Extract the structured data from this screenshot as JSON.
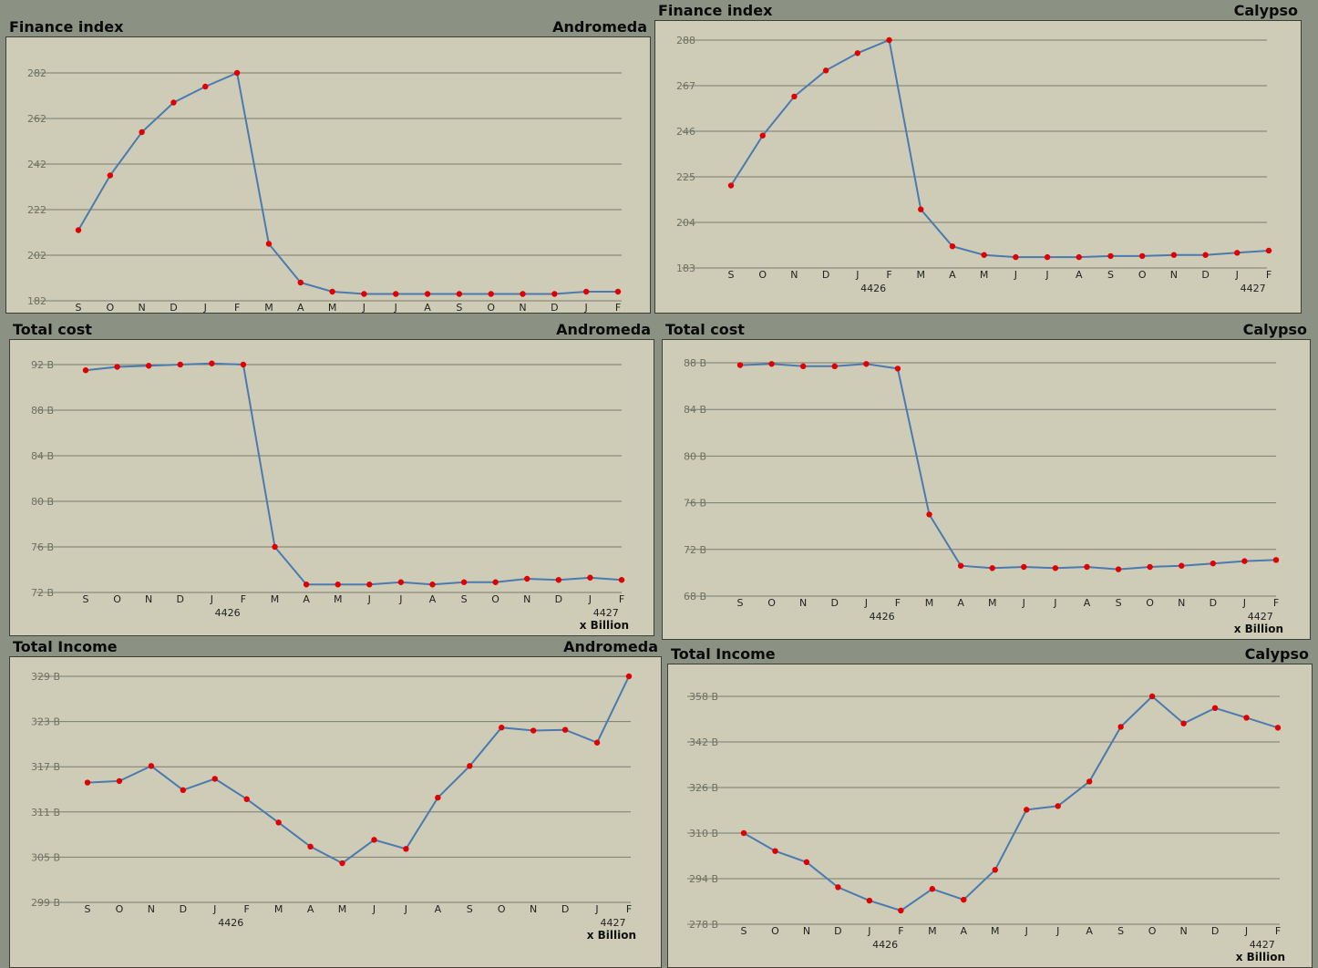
{
  "colors": {
    "background": "#ceccb6",
    "frame": "#8c9283",
    "line": "#4a7ab0",
    "point": "#e00000",
    "grid": "#7a7c70"
  },
  "chart_data": [
    {
      "type": "line",
      "title": "Finance index",
      "system": "Andromeda",
      "unit": "",
      "x": [
        "S",
        "O",
        "N",
        "D",
        "J",
        "F",
        "M",
        "A",
        "M",
        "J",
        "J",
        "A",
        "S",
        "O",
        "N",
        "D",
        "J",
        "F"
      ],
      "year_labels": [
        {
          "index": 4.5,
          "text": "4426"
        },
        {
          "index": 16.5,
          "text": "4427"
        }
      ],
      "yticks": [
        "182",
        "202",
        "222",
        "242",
        "262",
        "282"
      ],
      "ylim": [
        182,
        282
      ],
      "values": [
        213,
        237,
        256,
        269,
        276,
        282,
        207,
        190,
        186,
        185,
        185,
        185,
        185,
        185,
        185,
        185,
        186,
        186
      ]
    },
    {
      "type": "line",
      "title": "Finance index",
      "system": "Calypso",
      "unit": "",
      "x": [
        "S",
        "O",
        "N",
        "D",
        "J",
        "F",
        "M",
        "A",
        "M",
        "J",
        "J",
        "A",
        "S",
        "O",
        "N",
        "D",
        "J",
        "F"
      ],
      "year_labels": [
        {
          "index": 4.5,
          "text": "4426"
        },
        {
          "index": 16.5,
          "text": "4427"
        }
      ],
      "yticks": [
        "183",
        "204",
        "225",
        "246",
        "267",
        "288"
      ],
      "ylim": [
        183,
        288
      ],
      "values": [
        221,
        244,
        262,
        274,
        282,
        288,
        210,
        193,
        189,
        188,
        188,
        188,
        188.5,
        188.5,
        189,
        189,
        190,
        191
      ]
    },
    {
      "type": "line",
      "title": "Total cost",
      "system": "Andromeda",
      "unit": "x Billion",
      "x": [
        "S",
        "O",
        "N",
        "D",
        "J",
        "F",
        "M",
        "A",
        "M",
        "J",
        "J",
        "A",
        "S",
        "O",
        "N",
        "D",
        "J",
        "F"
      ],
      "year_labels": [
        {
          "index": 4.5,
          "text": "4426"
        },
        {
          "index": 16.5,
          "text": "4427"
        }
      ],
      "yticks": [
        "72 B",
        "76 B",
        "80 B",
        "84 B",
        "88 B",
        "92 B"
      ],
      "ylim": [
        72,
        92
      ],
      "values": [
        91.5,
        91.8,
        91.9,
        92,
        92.1,
        92,
        76,
        72.7,
        72.7,
        72.7,
        72.9,
        72.7,
        72.9,
        72.9,
        73.2,
        73.1,
        73.3,
        73.1
      ]
    },
    {
      "type": "line",
      "title": "Total cost",
      "system": "Calypso",
      "unit": "x Billion",
      "x": [
        "S",
        "O",
        "N",
        "D",
        "J",
        "F",
        "M",
        "A",
        "M",
        "J",
        "J",
        "A",
        "S",
        "O",
        "N",
        "D",
        "J",
        "F"
      ],
      "year_labels": [
        {
          "index": 4.5,
          "text": "4426"
        },
        {
          "index": 16.5,
          "text": "4427"
        }
      ],
      "yticks": [
        "68 B",
        "72 B",
        "76 B",
        "80 B",
        "84 B",
        "88 B"
      ],
      "ylim": [
        68,
        88
      ],
      "values": [
        87.8,
        87.9,
        87.7,
        87.7,
        87.9,
        87.5,
        75,
        70.6,
        70.4,
        70.5,
        70.4,
        70.5,
        70.3,
        70.5,
        70.6,
        70.8,
        71,
        71.1
      ]
    },
    {
      "type": "line",
      "title": "Total Income",
      "system": "Andromeda",
      "unit": "x Billion",
      "x": [
        "S",
        "O",
        "N",
        "D",
        "J",
        "F",
        "M",
        "A",
        "M",
        "J",
        "J",
        "A",
        "S",
        "O",
        "N",
        "D",
        "J",
        "F"
      ],
      "year_labels": [
        {
          "index": 4.5,
          "text": "4426"
        },
        {
          "index": 16.5,
          "text": "4427"
        }
      ],
      "yticks": [
        "299 B",
        "305 B",
        "311 B",
        "317 B",
        "323 B",
        "329 B"
      ],
      "ylim": [
        299,
        329
      ],
      "values": [
        314.9,
        315.1,
        317.1,
        313.9,
        315.4,
        312.7,
        309.6,
        306.4,
        304.2,
        307.3,
        306.1,
        312.9,
        317.1,
        322.2,
        321.8,
        321.9,
        320.2,
        329
      ]
    },
    {
      "type": "line",
      "title": "Total Income",
      "system": "Calypso",
      "unit": "x Billion",
      "x": [
        "S",
        "O",
        "N",
        "D",
        "J",
        "F",
        "M",
        "A",
        "M",
        "J",
        "J",
        "A",
        "S",
        "O",
        "N",
        "D",
        "J",
        "F"
      ],
      "year_labels": [
        {
          "index": 4.5,
          "text": "4426"
        },
        {
          "index": 16.5,
          "text": "4427"
        }
      ],
      "yticks": [
        "278 B",
        "294 B",
        "310 B",
        "326 B",
        "342 B",
        "358 B"
      ],
      "ylim": [
        278,
        358
      ],
      "values": [
        310,
        303.7,
        299.8,
        291,
        286.3,
        282.8,
        290.4,
        286.6,
        297.1,
        318.2,
        319.5,
        328.1,
        347.3,
        358,
        348.5,
        353.9,
        350.5,
        347
      ]
    }
  ]
}
